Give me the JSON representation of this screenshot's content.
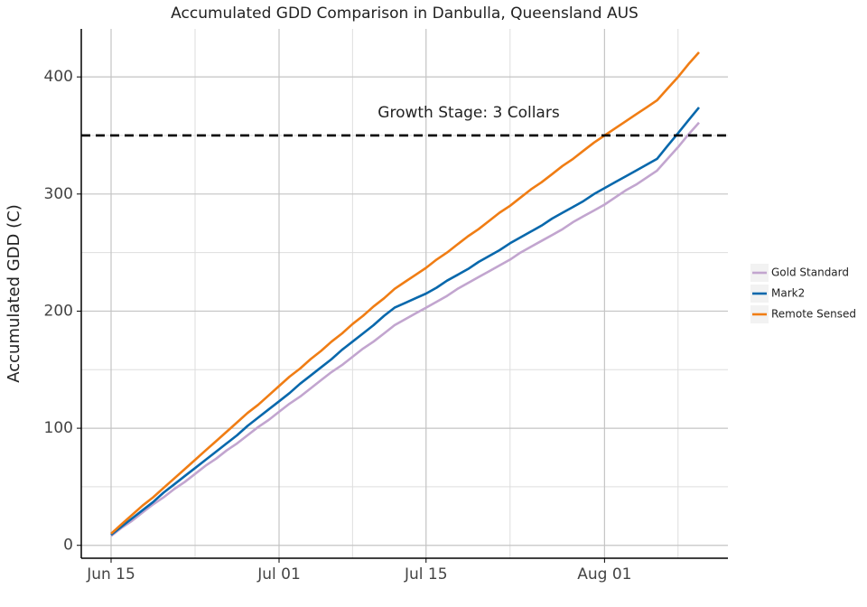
{
  "chart_data": {
    "type": "line",
    "title": "Accumulated GDD Comparison in Danbulla, Queensland AUS",
    "y_label": "Accumulated GDD (C)",
    "x": [
      "Jun 15",
      "Jun 16",
      "Jun 17",
      "Jun 18",
      "Jun 19",
      "Jun 20",
      "Jun 21",
      "Jun 22",
      "Jun 23",
      "Jun 24",
      "Jun 25",
      "Jun 26",
      "Jun 27",
      "Jun 28",
      "Jun 29",
      "Jun 30",
      "Jul 01",
      "Jul 02",
      "Jul 03",
      "Jul 04",
      "Jul 05",
      "Jul 06",
      "Jul 07",
      "Jul 08",
      "Jul 09",
      "Jul 10",
      "Jul 11",
      "Jul 12",
      "Jul 13",
      "Jul 14",
      "Jul 15",
      "Jul 16",
      "Jul 17",
      "Jul 18",
      "Jul 19",
      "Jul 20",
      "Jul 21",
      "Jul 22",
      "Jul 23",
      "Jul 24",
      "Jul 25",
      "Jul 26",
      "Jul 27",
      "Jul 28",
      "Jul 29",
      "Jul 30",
      "Jul 31",
      "Aug 01",
      "Aug 02",
      "Aug 03",
      "Aug 04",
      "Aug 05",
      "Aug 06",
      "Aug 07",
      "Aug 08",
      "Aug 09",
      "Aug 10"
    ],
    "series": [
      {
        "name": "Gold Standard",
        "color": "#c2a5cf",
        "values": [
          8,
          15,
          21,
          28,
          35,
          41,
          48,
          54,
          61,
          68,
          74,
          81,
          87,
          94,
          101,
          107,
          114,
          121,
          127,
          134,
          141,
          148,
          154,
          161,
          168,
          174,
          181,
          188,
          193,
          198,
          203,
          208,
          213,
          219,
          224,
          229,
          234,
          239,
          244,
          250,
          255,
          260,
          265,
          270,
          276,
          281,
          286,
          291,
          297,
          303,
          308,
          314,
          320,
          330,
          340,
          351,
          361
        ]
      },
      {
        "name": "Mark2",
        "color": "#0868ac",
        "values": [
          9,
          16,
          23,
          30,
          37,
          45,
          52,
          59,
          66,
          73,
          80,
          87,
          94,
          102,
          109,
          116,
          123,
          130,
          138,
          145,
          152,
          159,
          167,
          174,
          181,
          188,
          196,
          203,
          207,
          211,
          215,
          220,
          226,
          231,
          236,
          242,
          247,
          252,
          258,
          263,
          268,
          273,
          279,
          284,
          289,
          294,
          300,
          305,
          310,
          315,
          320,
          325,
          330,
          341,
          352,
          363,
          374
        ]
      },
      {
        "name": "Remote Sensed",
        "color": "#f07d14",
        "values": [
          10,
          18,
          26,
          34,
          41,
          49,
          57,
          65,
          73,
          81,
          89,
          97,
          105,
          113,
          120,
          128,
          136,
          144,
          151,
          159,
          166,
          174,
          181,
          189,
          196,
          204,
          211,
          219,
          225,
          231,
          237,
          244,
          250,
          257,
          264,
          270,
          277,
          284,
          290,
          297,
          304,
          310,
          317,
          324,
          330,
          337,
          344,
          350,
          356,
          362,
          368,
          374,
          380,
          390,
          400,
          411,
          421
        ]
      }
    ],
    "xticks": [
      "Jun 15",
      "Jul 01",
      "Jul 15",
      "Aug 01"
    ],
    "xminor": [
      "Jun 23",
      "Jul 08",
      "Jul 23",
      "Aug 08"
    ],
    "ylim": [
      -11,
      441
    ],
    "yticks": [
      0,
      100,
      200,
      300,
      400
    ],
    "yminor": [
      50,
      150,
      250,
      350
    ],
    "grid": true,
    "hline": {
      "value": 350,
      "label": "Growth Stage: 3 Collars",
      "color": "#000000"
    },
    "legend": "right"
  }
}
